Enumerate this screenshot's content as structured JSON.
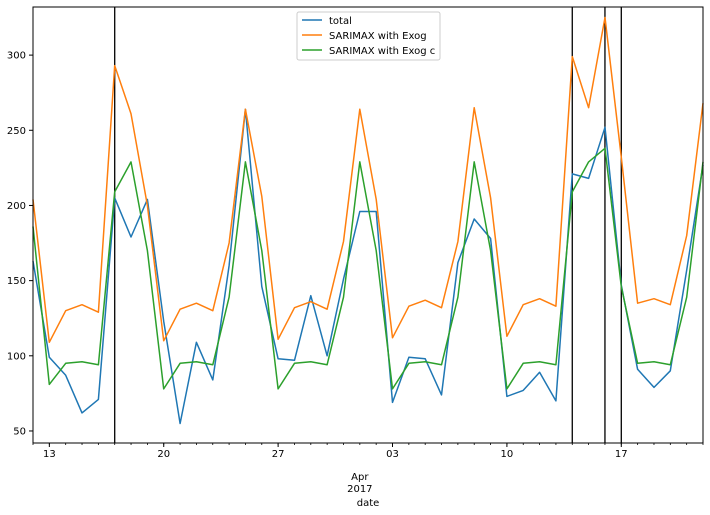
{
  "chart_data": {
    "type": "line",
    "xlabel": "date",
    "x_tick_labels": [
      "13",
      "20",
      "27",
      "03",
      "10",
      "17"
    ],
    "x_tick_dates": [
      "2017-03-13",
      "2017-03-20",
      "2017-03-27",
      "2017-04-03",
      "2017-04-10",
      "2017-04-17"
    ],
    "x_secondary_label_line1": "Apr",
    "x_secondary_label_line2": "2017",
    "x_secondary_label_date": "2017-04-01",
    "xlim": [
      "2017-03-12",
      "2017-04-22"
    ],
    "ylim": [
      42,
      332
    ],
    "yticks": [
      50,
      100,
      150,
      200,
      250,
      300
    ],
    "legend_position": "upper center",
    "grid": false,
    "vertical_lines": [
      "2017-03-17",
      "2017-04-14",
      "2017-04-16",
      "2017-04-17"
    ],
    "x": [
      "2017-03-12",
      "2017-03-13",
      "2017-03-14",
      "2017-03-15",
      "2017-03-16",
      "2017-03-17",
      "2017-03-18",
      "2017-03-19",
      "2017-03-20",
      "2017-03-21",
      "2017-03-22",
      "2017-03-23",
      "2017-03-24",
      "2017-03-25",
      "2017-03-26",
      "2017-03-27",
      "2017-03-28",
      "2017-03-29",
      "2017-03-30",
      "2017-03-31",
      "2017-04-01",
      "2017-04-02",
      "2017-04-03",
      "2017-04-04",
      "2017-04-05",
      "2017-04-06",
      "2017-04-07",
      "2017-04-08",
      "2017-04-09",
      "2017-04-10",
      "2017-04-11",
      "2017-04-12",
      "2017-04-13",
      "2017-04-14",
      "2017-04-15",
      "2017-04-16",
      "2017-04-17",
      "2017-04-18",
      "2017-04-19",
      "2017-04-20",
      "2017-04-21",
      "2017-04-22"
    ],
    "series": [
      {
        "name": "total",
        "color": "#1f77b4",
        "values": [
          163,
          99,
          87,
          62,
          71,
          205,
          179,
          204,
          123,
          55,
          109,
          84,
          160,
          264,
          146,
          98,
          97,
          140,
          100,
          151,
          196,
          196,
          69,
          99,
          98,
          74,
          162,
          191,
          178,
          73,
          77,
          89,
          70,
          221,
          218,
          252,
          147,
          91,
          79,
          90,
          157,
          227
        ]
      },
      {
        "name": "SARIMAX with Exog",
        "color": "#ff7f0e",
        "values": [
          204,
          109,
          130,
          134,
          129,
          293,
          261,
          200,
          110,
          131,
          135,
          130,
          175,
          264,
          206,
          111,
          132,
          136,
          131,
          176,
          264,
          204,
          112,
          133,
          137,
          132,
          176,
          265,
          205,
          113,
          134,
          138,
          133,
          299,
          265,
          325,
          232,
          135,
          138,
          134,
          180,
          268
        ]
      },
      {
        "name": "SARIMAX with Exog c",
        "color": "#2ca02c",
        "values": [
          186,
          81,
          95,
          96,
          94,
          209,
          229,
          170,
          78,
          95,
          96,
          94,
          139,
          229,
          170,
          78,
          95,
          96,
          94,
          139,
          229,
          170,
          78,
          95,
          96,
          94,
          139,
          229,
          170,
          78,
          95,
          96,
          94,
          209,
          229,
          238,
          146,
          95,
          96,
          94,
          139,
          229
        ]
      }
    ]
  }
}
